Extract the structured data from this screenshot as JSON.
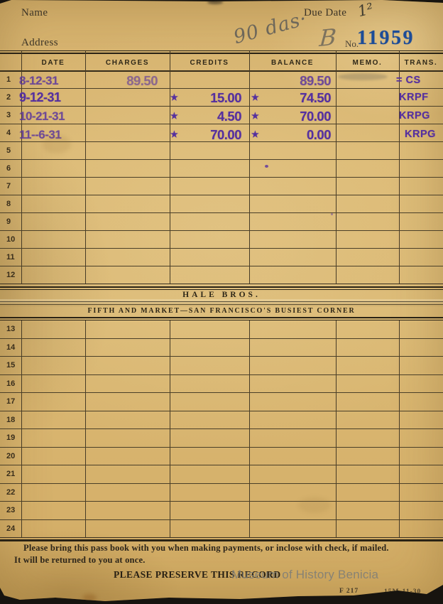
{
  "header": {
    "name_label": "Name",
    "address_label": "Address",
    "due_date_label": "Due Date",
    "due_date_value": "1²",
    "handwritten_note": "90 das·",
    "handwritten_flourish": "B",
    "no_label": "No.",
    "account_number": "11959"
  },
  "table": {
    "columns": [
      "DATE",
      "CHARGES",
      "CREDITS",
      "BALANCE",
      "MEMO.",
      "TRANS."
    ],
    "top_row_numbers": [
      "1",
      "2",
      "3",
      "4",
      "5",
      "6",
      "7",
      "8",
      "9",
      "10",
      "11",
      "12"
    ],
    "bottom_row_numbers": [
      "13",
      "14",
      "15",
      "16",
      "17",
      "18",
      "19",
      "20",
      "21",
      "22",
      "23",
      "24"
    ]
  },
  "entries": [
    {
      "date": "8-12-31",
      "charges": "89.50",
      "credit_mark": "",
      "credits": "",
      "balance_mark": "",
      "balance": "89.50",
      "trans": "= CS"
    },
    {
      "date": "9-12-31",
      "charges": "",
      "credit_mark": "★",
      "credits": "15.00",
      "balance_mark": "★",
      "balance": "74.50",
      "trans": "KRPF"
    },
    {
      "date": "10-21-31",
      "charges": "",
      "credit_mark": "★",
      "credits": "4.50",
      "balance_mark": "★",
      "balance": "70.00",
      "trans": "KRPG"
    },
    {
      "date": "11--6-31",
      "charges": "",
      "credit_mark": "★",
      "credits": "70.00",
      "balance_mark": "★",
      "balance": "0.00",
      "trans": "KRPG"
    }
  ],
  "divider": {
    "store_name": "HALE BROS.",
    "store_location": "FIFTH AND MARKET—SAN FRANCISCO'S BUSIEST CORNER"
  },
  "footer": {
    "notice_line1": "Please bring this pass book with you when making payments, or inclose with check, if mailed.",
    "notice_line2": "It will be returned to you at once.",
    "preserve_text": "PLEASE PRESERVE THIS RECORD",
    "watermark": "Museum of History Benicia",
    "form_code": "F 217",
    "print_code": "15M-11-30"
  },
  "colors": {
    "card": "#dcba75",
    "stamp_purple": "#55309f",
    "account_blue": "#1d4c97",
    "rule": "#2a2315"
  }
}
